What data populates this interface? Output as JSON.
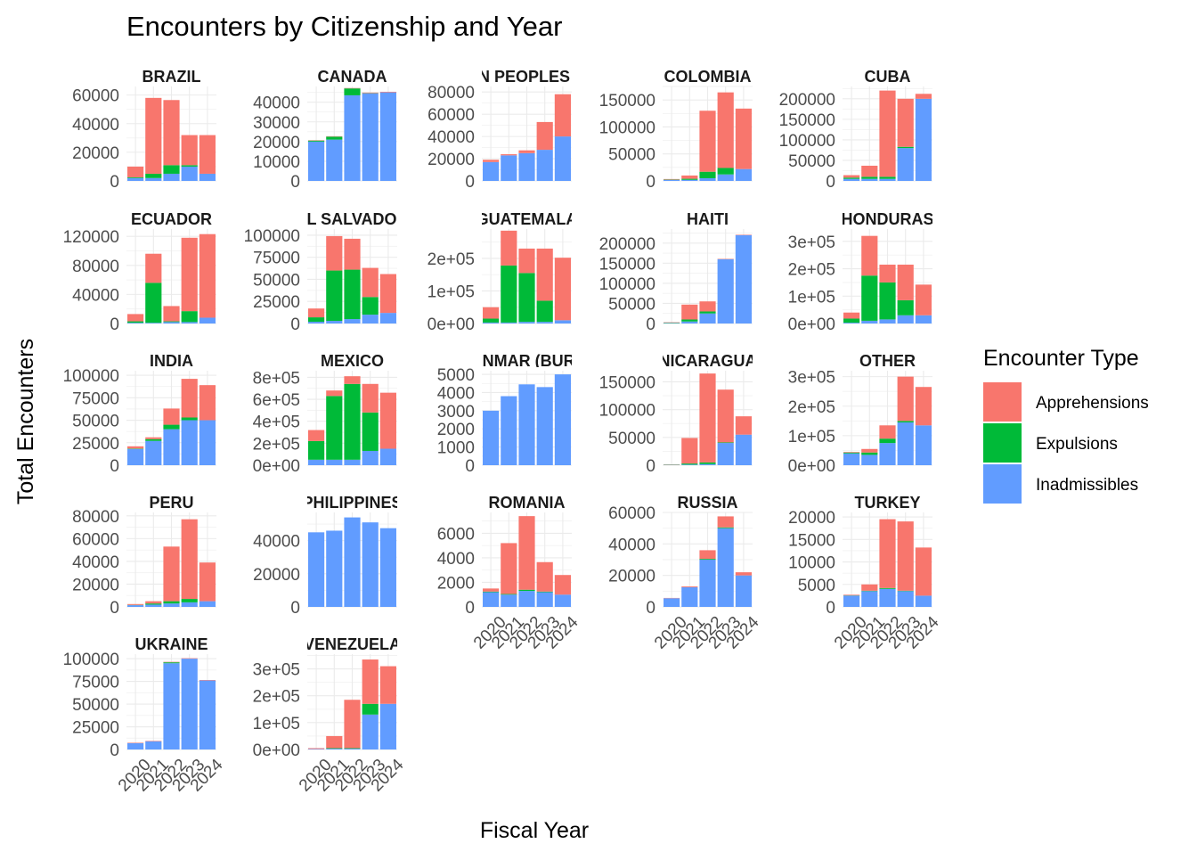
{
  "chart_data": {
    "type": "bar",
    "stacked": true,
    "faceted": true,
    "title": "Encounters by Citizenship and Year",
    "xlabel": "Fiscal Year",
    "ylabel": "Total Encounters",
    "legend": {
      "title": "Encounter Type",
      "position": "right",
      "items": [
        "Apprehensions",
        "Expulsions",
        "Inadmissibles"
      ]
    },
    "colors": {
      "Apprehensions": "#F8766D",
      "Expulsions": "#00BA38",
      "Inadmissibles": "#619CFF"
    },
    "categories": [
      "2020",
      "2021",
      "2022",
      "2023",
      "2024"
    ],
    "grid": true,
    "stack_order_bottom_to_top": [
      "Inadmissibles",
      "Expulsions",
      "Apprehensions"
    ],
    "facets": [
      {
        "title": "BRAZIL",
        "ylim": [
          0,
          66000
        ],
        "yticks": [
          0,
          20000,
          40000,
          60000
        ],
        "ytick_labels": [
          "0",
          "20000",
          "40000",
          "60000"
        ],
        "series": {
          "Inadmissibles": [
            2000,
            2000,
            5000,
            10000,
            5000
          ],
          "Expulsions": [
            500,
            3000,
            6000,
            1000,
            0
          ],
          "Apprehensions": [
            7500,
            53000,
            45500,
            21000,
            27000
          ]
        }
      },
      {
        "title": "CANADA",
        "ylim": [
          0,
          48000
        ],
        "yticks": [
          0,
          10000,
          20000,
          30000,
          40000
        ],
        "ytick_labels": [
          "0",
          "10000",
          "20000",
          "30000",
          "40000"
        ],
        "series": {
          "Inadmissibles": [
            20000,
            21000,
            43500,
            44500,
            45000
          ],
          "Expulsions": [
            500,
            1500,
            3500,
            100,
            0
          ],
          "Apprehensions": [
            200,
            200,
            200,
            300,
            300
          ]
        }
      },
      {
        "title": "DOMINICAN PEOPLES REPUBLIC",
        "ylim": [
          0,
          85000
        ],
        "yticks": [
          0,
          20000,
          40000,
          60000,
          80000
        ],
        "ytick_labels": [
          "0",
          "20000",
          "40000",
          "60000",
          "80000"
        ],
        "series": {
          "Inadmissibles": [
            17000,
            23000,
            25000,
            28000,
            40000
          ],
          "Expulsions": [
            0,
            0,
            0,
            0,
            0
          ],
          "Apprehensions": [
            2000,
            1000,
            2500,
            25000,
            38000
          ]
        }
      },
      {
        "title": "COLOMBIA",
        "ylim": [
          0,
          175000
        ],
        "yticks": [
          0,
          50000,
          100000,
          150000
        ],
        "ytick_labels": [
          "0",
          "50000",
          "100000",
          "150000"
        ],
        "series": {
          "Inadmissibles": [
            2000,
            2000,
            5000,
            12000,
            22000
          ],
          "Expulsions": [
            500,
            2000,
            12000,
            12000,
            0
          ],
          "Apprehensions": [
            1000,
            6000,
            113000,
            140000,
            112000
          ]
        }
      },
      {
        "title": "CUBA",
        "ylim": [
          0,
          230000
        ],
        "yticks": [
          0,
          50000,
          100000,
          150000,
          200000
        ],
        "ytick_labels": [
          "0",
          "50000",
          "100000",
          "150000",
          "200000"
        ],
        "series": {
          "Inadmissibles": [
            5000,
            5000,
            5000,
            80000,
            200000
          ],
          "Expulsions": [
            3000,
            5000,
            5000,
            3000,
            0
          ],
          "Apprehensions": [
            6000,
            27000,
            210000,
            117000,
            12000
          ]
        }
      },
      {
        "title": "ECUADOR",
        "ylim": [
          0,
          130000
        ],
        "yticks": [
          0,
          40000,
          80000,
          120000
        ],
        "ytick_labels": [
          "0",
          "40000",
          "80000",
          "120000"
        ],
        "series": {
          "Inadmissibles": [
            1000,
            1000,
            2000,
            2000,
            8000
          ],
          "Expulsions": [
            2000,
            55000,
            1000,
            15000,
            0
          ],
          "Apprehensions": [
            10000,
            40000,
            21000,
            101000,
            115000
          ]
        }
      },
      {
        "title": "EL SALVADOR",
        "ylim": [
          0,
          107000
        ],
        "yticks": [
          0,
          25000,
          50000,
          75000,
          100000
        ],
        "ytick_labels": [
          "0",
          "25000",
          "50000",
          "75000",
          "100000"
        ],
        "series": {
          "Inadmissibles": [
            2000,
            3000,
            5000,
            10000,
            12000
          ],
          "Expulsions": [
            5000,
            57000,
            56000,
            20000,
            0
          ],
          "Apprehensions": [
            10000,
            39000,
            35000,
            33000,
            44000
          ]
        }
      },
      {
        "title": "GUATEMALA",
        "ylim": [
          0,
          290000
        ],
        "yticks": [
          0,
          100000,
          200000
        ],
        "ytick_labels": [
          "0e+00",
          "1e+05",
          "2e+05"
        ],
        "series": {
          "Inadmissibles": [
            3000,
            3000,
            5000,
            5000,
            10000
          ],
          "Expulsions": [
            12000,
            175000,
            150000,
            65000,
            0
          ],
          "Apprehensions": [
            35000,
            107000,
            75000,
            160000,
            192000
          ]
        }
      },
      {
        "title": "HAITI",
        "ylim": [
          0,
          235000
        ],
        "yticks": [
          0,
          50000,
          100000,
          150000,
          200000
        ],
        "ytick_labels": [
          "0",
          "50000",
          "100000",
          "150000",
          "200000"
        ],
        "series": {
          "Inadmissibles": [
            1000,
            5000,
            25000,
            160000,
            220000
          ],
          "Expulsions": [
            1000,
            5000,
            5000,
            0,
            0
          ],
          "Apprehensions": [
            1000,
            37000,
            25000,
            1000,
            1000
          ]
        }
      },
      {
        "title": "HONDURAS",
        "ylim": [
          0,
          345000
        ],
        "yticks": [
          0,
          100000,
          200000,
          300000
        ],
        "ytick_labels": [
          "0e+00",
          "1e+05",
          "2e+05",
          "3e+05"
        ],
        "series": {
          "Inadmissibles": [
            3000,
            10000,
            15000,
            30000,
            30000
          ],
          "Expulsions": [
            15000,
            165000,
            135000,
            55000,
            0
          ],
          "Apprehensions": [
            22000,
            145000,
            65000,
            130000,
            112000
          ]
        }
      },
      {
        "title": "INDIA",
        "ylim": [
          0,
          105000
        ],
        "yticks": [
          0,
          25000,
          50000,
          75000,
          100000
        ],
        "ytick_labels": [
          "0",
          "25000",
          "50000",
          "75000",
          "100000"
        ],
        "series": {
          "Inadmissibles": [
            18000,
            27000,
            40000,
            50000,
            50000
          ],
          "Expulsions": [
            500,
            2000,
            5000,
            3000,
            0
          ],
          "Apprehensions": [
            2500,
            2000,
            18000,
            43000,
            39000
          ]
        }
      },
      {
        "title": "MEXICO",
        "ylim": [
          0,
          860000
        ],
        "yticks": [
          0,
          200000,
          400000,
          600000,
          800000
        ],
        "ytick_labels": [
          "0e+00",
          "2e+05",
          "4e+05",
          "6e+05",
          "8e+05"
        ],
        "series": {
          "Inadmissibles": [
            50000,
            50000,
            50000,
            130000,
            150000
          ],
          "Expulsions": [
            170000,
            580000,
            690000,
            350000,
            0
          ],
          "Apprehensions": [
            100000,
            50000,
            70000,
            260000,
            510000
          ]
        }
      },
      {
        "title": "MYANMAR (BURMA)",
        "ylim": [
          0,
          5200
        ],
        "yticks": [
          0,
          1000,
          2000,
          3000,
          4000,
          5000
        ],
        "ytick_labels": [
          "0",
          "1000",
          "2000",
          "3000",
          "4000",
          "5000"
        ],
        "series": {
          "Inadmissibles": [
            3000,
            3800,
            4450,
            4300,
            5000
          ],
          "Expulsions": [
            0,
            0,
            0,
            0,
            0
          ],
          "Apprehensions": [
            0,
            0,
            0,
            0,
            0
          ]
        }
      },
      {
        "title": "NICARAGUA",
        "ylim": [
          0,
          170000
        ],
        "yticks": [
          0,
          50000,
          100000,
          150000
        ],
        "ytick_labels": [
          "0",
          "50000",
          "100000",
          "150000"
        ],
        "series": {
          "Inadmissibles": [
            500,
            1000,
            2000,
            40000,
            55000
          ],
          "Expulsions": [
            500,
            2000,
            3000,
            1000,
            0
          ],
          "Apprehensions": [
            500,
            46000,
            160000,
            95000,
            33000
          ]
        }
      },
      {
        "title": "OTHER",
        "ylim": [
          0,
          320000
        ],
        "yticks": [
          0,
          100000,
          200000,
          300000
        ],
        "ytick_labels": [
          "0e+00",
          "1e+05",
          "2e+05",
          "3e+05"
        ],
        "series": {
          "Inadmissibles": [
            40000,
            35000,
            75000,
            145000,
            135000
          ],
          "Expulsions": [
            3000,
            8000,
            15000,
            5000,
            0
          ],
          "Apprehensions": [
            2000,
            12000,
            45000,
            150000,
            130000
          ]
        }
      },
      {
        "title": "PERU",
        "ylim": [
          0,
          83000
        ],
        "yticks": [
          0,
          20000,
          40000,
          60000,
          80000
        ],
        "ytick_labels": [
          "0",
          "20000",
          "40000",
          "60000",
          "80000"
        ],
        "series": {
          "Inadmissibles": [
            1500,
            2000,
            3000,
            4000,
            5000
          ],
          "Expulsions": [
            200,
            1000,
            2000,
            3000,
            0
          ],
          "Apprehensions": [
            800,
            2000,
            48000,
            70000,
            34000
          ]
        }
      },
      {
        "title": "PHILIPPINES",
        "ylim": [
          0,
          57000
        ],
        "yticks": [
          0,
          20000,
          40000
        ],
        "ytick_labels": [
          "0",
          "20000",
          "40000"
        ],
        "series": {
          "Inadmissibles": [
            45000,
            46000,
            54000,
            51000,
            47500
          ],
          "Expulsions": [
            0,
            0,
            0,
            0,
            0
          ],
          "Apprehensions": [
            0,
            0,
            0,
            0,
            0
          ]
        }
      },
      {
        "title": "ROMANIA",
        "ylim": [
          0,
          7700
        ],
        "yticks": [
          0,
          2000,
          4000,
          6000
        ],
        "ytick_labels": [
          "0",
          "2000",
          "4000",
          "6000"
        ],
        "series": {
          "Inadmissibles": [
            1200,
            1000,
            1300,
            1200,
            1000
          ],
          "Expulsions": [
            50,
            50,
            100,
            50,
            0
          ],
          "Apprehensions": [
            250,
            4150,
            6000,
            2400,
            1600
          ]
        }
      },
      {
        "title": "RUSSIA",
        "ylim": [
          0,
          60000
        ],
        "yticks": [
          0,
          20000,
          40000,
          60000
        ],
        "ytick_labels": [
          "0",
          "20000",
          "40000",
          "60000"
        ],
        "series": {
          "Inadmissibles": [
            5500,
            12500,
            30000,
            50000,
            20000
          ],
          "Expulsions": [
            0,
            0,
            500,
            500,
            0
          ],
          "Apprehensions": [
            200,
            500,
            5500,
            7000,
            2000
          ]
        }
      },
      {
        "title": "TURKEY",
        "ylim": [
          0,
          21000
        ],
        "yticks": [
          0,
          5000,
          10000,
          15000,
          20000
        ],
        "ytick_labels": [
          "0",
          "5000",
          "10000",
          "15000",
          "20000"
        ],
        "series": {
          "Inadmissibles": [
            2500,
            3500,
            4000,
            3500,
            2500
          ],
          "Expulsions": [
            50,
            100,
            200,
            100,
            0
          ],
          "Apprehensions": [
            150,
            1400,
            15300,
            15400,
            10700
          ]
        }
      },
      {
        "title": "UKRAINE",
        "ylim": [
          0,
          105000
        ],
        "yticks": [
          0,
          25000,
          50000,
          75000,
          100000
        ],
        "ytick_labels": [
          "0",
          "25000",
          "50000",
          "75000",
          "100000"
        ],
        "series": {
          "Inadmissibles": [
            7000,
            9000,
            95000,
            100000,
            76000
          ],
          "Expulsions": [
            0,
            0,
            1000,
            0,
            0
          ],
          "Apprehensions": [
            500,
            500,
            500,
            500,
            500
          ]
        }
      },
      {
        "title": "VENEZUELA",
        "ylim": [
          0,
          355000
        ],
        "yticks": [
          0,
          100000,
          200000,
          300000
        ],
        "ytick_labels": [
          "0e+00",
          "1e+05",
          "2e+05",
          "3e+05"
        ],
        "series": {
          "Inadmissibles": [
            2000,
            3000,
            3000,
            130000,
            170000
          ],
          "Expulsions": [
            0,
            2000,
            2000,
            40000,
            0
          ],
          "Apprehensions": [
            3000,
            45000,
            180000,
            165000,
            140000
          ]
        }
      }
    ]
  }
}
